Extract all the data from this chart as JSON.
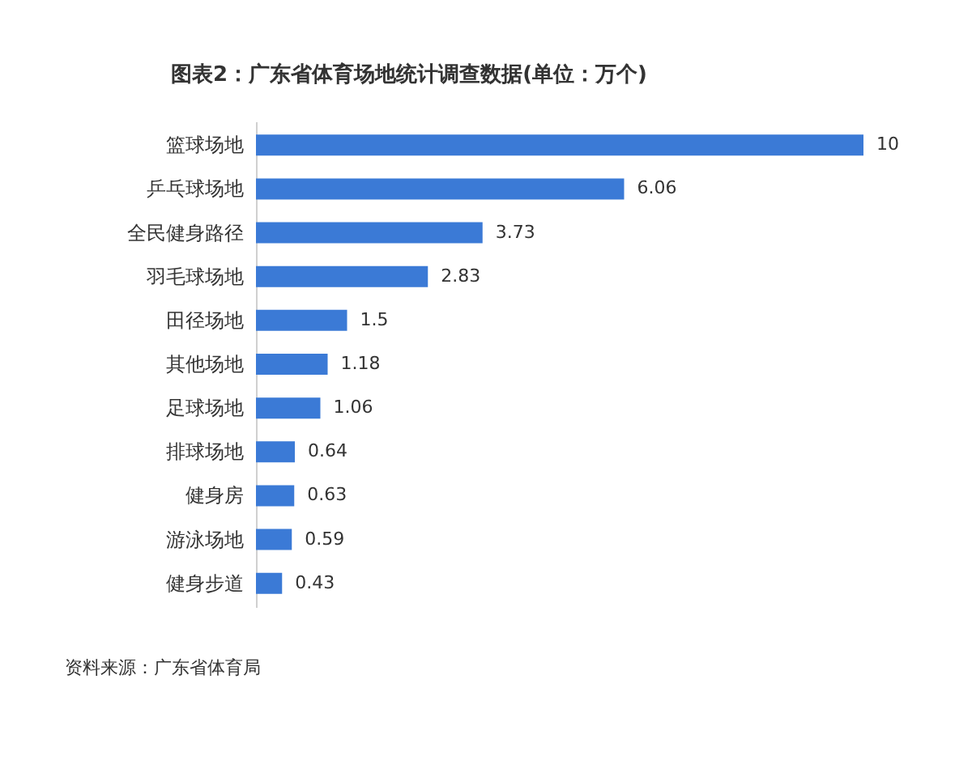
{
  "chart_data": {
    "type": "bar",
    "orientation": "horizontal",
    "title": "图表2：广东省体育场地统计调查数据(单位：万个)",
    "categories": [
      "篮球场地",
      "乒乓球场地",
      "全民健身路径",
      "羽毛球场地",
      "田径场地",
      "其他场地",
      "足球场地",
      "排球场地",
      "健身房",
      "游泳场地",
      "健身步道"
    ],
    "values": [
      10,
      6.06,
      3.73,
      2.83,
      1.5,
      1.18,
      1.06,
      0.64,
      0.63,
      0.59,
      0.43
    ],
    "color": "#3b7ad6",
    "data_labels": true,
    "tick_labels": "y",
    "annotations": [
      "资料来源：广东省体育局"
    ]
  }
}
